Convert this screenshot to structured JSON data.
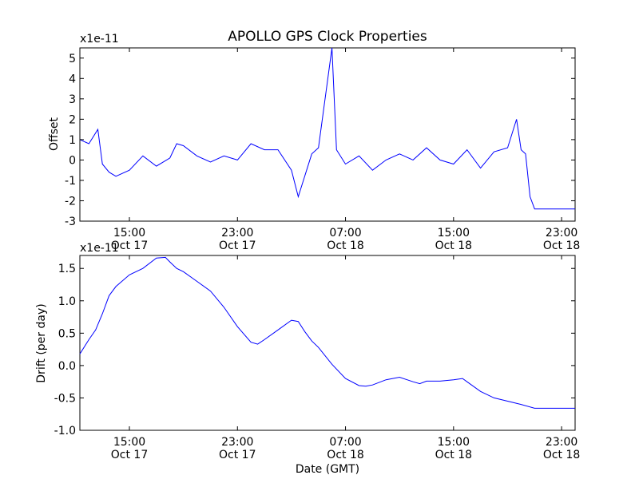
{
  "chart_data": [
    {
      "type": "line",
      "title": "APOLLO GPS Clock Properties",
      "ylabel": "Offset",
      "offset_text": "x1e-11",
      "ylim": [
        -3,
        5.5
      ],
      "yticks": [
        -3,
        -2,
        -1,
        0,
        1,
        2,
        3,
        4,
        5
      ],
      "ytick_labels": [
        "-3",
        "-2",
        "-1",
        "0",
        "1",
        "2",
        "3",
        "4",
        "5"
      ],
      "xlim": [
        "2011-10-17 11:20",
        "2011-10-19 00:00"
      ],
      "xticks": [
        {
          "value": "2011-10-17 15:00",
          "time": "15:00",
          "date": "Oct 17"
        },
        {
          "value": "2011-10-17 23:00",
          "time": "23:00",
          "date": "Oct 17"
        },
        {
          "value": "2011-10-18 07:00",
          "time": "07:00",
          "date": "Oct 18"
        },
        {
          "value": "2011-10-18 15:00",
          "time": "15:00",
          "date": "Oct 18"
        },
        {
          "value": "2011-10-18 23:00",
          "time": "23:00",
          "date": "Oct 18"
        }
      ],
      "series_color": "#0000ff",
      "series": [
        {
          "x": [
            "2011-10-17 11:20",
            "2011-10-17 12:00",
            "2011-10-17 12:40",
            "2011-10-17 13:00",
            "2011-10-17 13:30",
            "2011-10-17 14:00",
            "2011-10-17 15:00",
            "2011-10-17 16:00",
            "2011-10-17 17:00",
            "2011-10-17 18:00",
            "2011-10-17 18:30",
            "2011-10-17 19:00",
            "2011-10-17 20:00",
            "2011-10-17 21:00",
            "2011-10-17 22:00",
            "2011-10-17 23:00",
            "2011-10-18 00:00",
            "2011-10-18 01:00",
            "2011-10-18 02:00",
            "2011-10-18 03:00",
            "2011-10-18 03:30",
            "2011-10-18 04:30",
            "2011-10-18 05:00",
            "2011-10-18 06:00",
            "2011-10-18 06:20",
            "2011-10-18 07:00",
            "2011-10-18 08:00",
            "2011-10-18 09:00",
            "2011-10-18 10:00",
            "2011-10-18 11:00",
            "2011-10-18 12:00",
            "2011-10-18 13:00",
            "2011-10-18 14:00",
            "2011-10-18 15:00",
            "2011-10-18 16:00",
            "2011-10-18 17:00",
            "2011-10-18 18:00",
            "2011-10-18 19:00",
            "2011-10-18 19:40",
            "2011-10-18 20:00",
            "2011-10-18 20:20",
            "2011-10-18 20:40",
            "2011-10-18 21:00",
            "2011-10-18 22:00",
            "2011-10-18 23:00",
            "2011-10-19 00:00"
          ],
          "values": [
            1.0,
            0.8,
            1.5,
            -0.2,
            -0.6,
            -0.8,
            -0.5,
            0.2,
            -0.3,
            0.1,
            0.8,
            0.7,
            0.2,
            -0.1,
            0.2,
            0.0,
            0.8,
            0.5,
            0.5,
            -0.5,
            -1.8,
            0.3,
            0.6,
            5.5,
            0.5,
            -0.2,
            0.2,
            -0.5,
            0.0,
            0.3,
            0.0,
            0.6,
            0.0,
            -0.2,
            0.5,
            -0.4,
            0.4,
            0.6,
            2.0,
            0.5,
            0.3,
            -1.8,
            -2.4,
            -2.4,
            -2.4,
            -2.4
          ]
        }
      ]
    },
    {
      "type": "line",
      "ylabel": "Drift (per day)",
      "xlabel": "Date (GMT)",
      "offset_text": "x1e-11",
      "ylim": [
        -1.0,
        1.7
      ],
      "yticks": [
        -1.0,
        -0.5,
        0.0,
        0.5,
        1.0,
        1.5
      ],
      "ytick_labels": [
        "-1.0",
        "-0.5",
        "0.0",
        "0.5",
        "1.0",
        "1.5"
      ],
      "xlim": [
        "2011-10-17 11:20",
        "2011-10-19 00:00"
      ],
      "xticks": [
        {
          "value": "2011-10-17 15:00",
          "time": "15:00",
          "date": "Oct 17"
        },
        {
          "value": "2011-10-17 23:00",
          "time": "23:00",
          "date": "Oct 17"
        },
        {
          "value": "2011-10-18 07:00",
          "time": "07:00",
          "date": "Oct 18"
        },
        {
          "value": "2011-10-18 15:00",
          "time": "15:00",
          "date": "Oct 18"
        },
        {
          "value": "2011-10-18 23:00",
          "time": "23:00",
          "date": "Oct 18"
        }
      ],
      "series_color": "#0000ff",
      "series": [
        {
          "x": [
            "2011-10-17 11:20",
            "2011-10-17 12:00",
            "2011-10-17 12:30",
            "2011-10-17 13:00",
            "2011-10-17 13:30",
            "2011-10-17 14:00",
            "2011-10-17 15:00",
            "2011-10-17 16:00",
            "2011-10-17 17:00",
            "2011-10-17 17:40",
            "2011-10-17 18:00",
            "2011-10-17 18:30",
            "2011-10-17 19:00",
            "2011-10-17 20:00",
            "2011-10-17 21:00",
            "2011-10-17 22:00",
            "2011-10-17 23:00",
            "2011-10-18 00:00",
            "2011-10-18 00:30",
            "2011-10-18 01:00",
            "2011-10-18 02:00",
            "2011-10-18 03:00",
            "2011-10-18 03:30",
            "2011-10-18 04:00",
            "2011-10-18 04:30",
            "2011-10-18 05:00",
            "2011-10-18 06:00",
            "2011-10-18 07:00",
            "2011-10-18 08:00",
            "2011-10-18 08:30",
            "2011-10-18 09:00",
            "2011-10-18 10:00",
            "2011-10-18 11:00",
            "2011-10-18 12:00",
            "2011-10-18 12:30",
            "2011-10-18 13:00",
            "2011-10-18 14:00",
            "2011-10-18 15:00",
            "2011-10-18 15:40",
            "2011-10-18 16:00",
            "2011-10-18 17:00",
            "2011-10-18 18:00",
            "2011-10-18 19:00",
            "2011-10-18 20:00",
            "2011-10-18 21:00",
            "2011-10-18 22:00",
            "2011-10-18 23:00",
            "2011-10-19 00:00"
          ],
          "values": [
            0.18,
            0.4,
            0.55,
            0.8,
            1.08,
            1.22,
            1.4,
            1.5,
            1.66,
            1.67,
            1.6,
            1.5,
            1.45,
            1.3,
            1.15,
            0.9,
            0.6,
            0.36,
            0.33,
            0.4,
            0.55,
            0.7,
            0.68,
            0.52,
            0.38,
            0.28,
            0.02,
            -0.2,
            -0.31,
            -0.32,
            -0.3,
            -0.22,
            -0.18,
            -0.25,
            -0.28,
            -0.24,
            -0.24,
            -0.22,
            -0.2,
            -0.25,
            -0.4,
            -0.5,
            -0.55,
            -0.6,
            -0.66,
            -0.66,
            -0.66,
            -0.66
          ]
        }
      ]
    }
  ]
}
